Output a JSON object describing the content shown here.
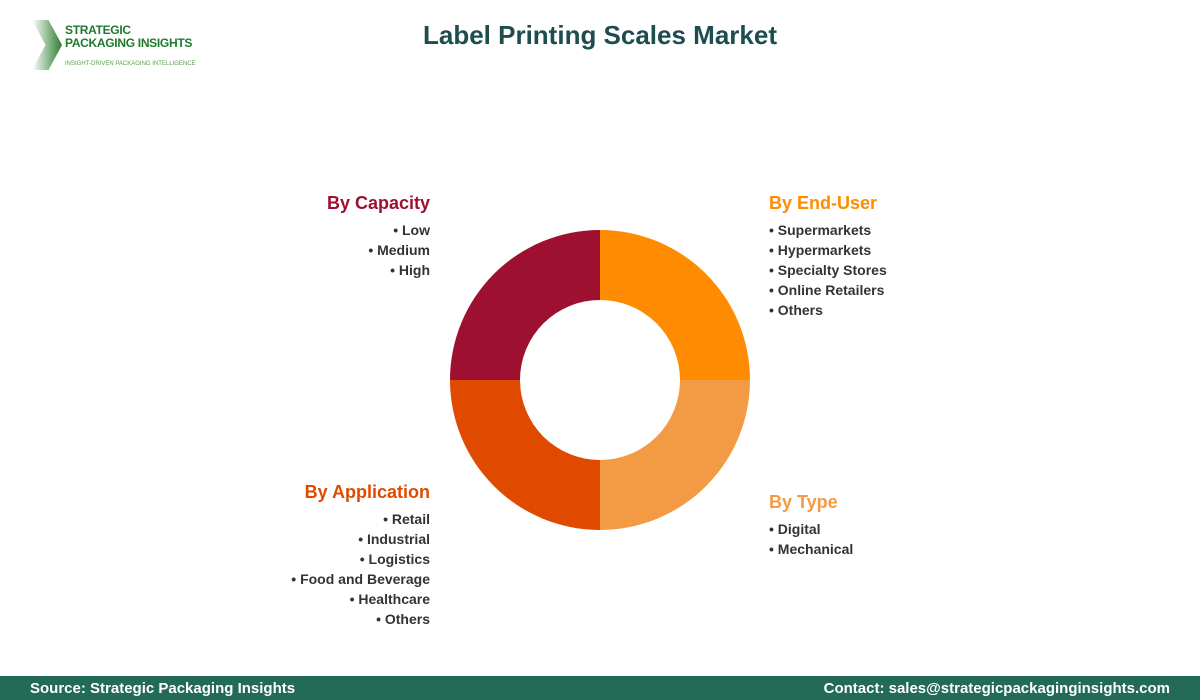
{
  "logo": {
    "line1": "STRATEGIC",
    "line2": "PACKAGING INSIGHTS",
    "tagline": "INSIGHT-DRIVEN PACKAGING INTELLIGENCE"
  },
  "title": "Label Printing Scales Market",
  "segments": [
    {
      "name": "By Capacity",
      "color": "#9e1030",
      "items": [
        "Low",
        "Medium",
        "High"
      ]
    },
    {
      "name": "By End-User",
      "color": "#ff8c00",
      "items": [
        "Supermarkets",
        "Hypermarkets",
        "Specialty Stores",
        "Online Retailers",
        "Others"
      ]
    },
    {
      "name": "By Type",
      "color": "#f39a45",
      "items": [
        "Digital",
        "Mechanical"
      ]
    },
    {
      "name": "By Application",
      "color": "#e04a00",
      "items": [
        "Retail",
        "Industrial",
        "Logistics",
        "Food and Beverage",
        "Healthcare",
        "Others"
      ]
    }
  ],
  "footer": {
    "source": "Source: Strategic Packaging Insights",
    "contact": "Contact: sales@strategicpackaginginsights.com"
  }
}
